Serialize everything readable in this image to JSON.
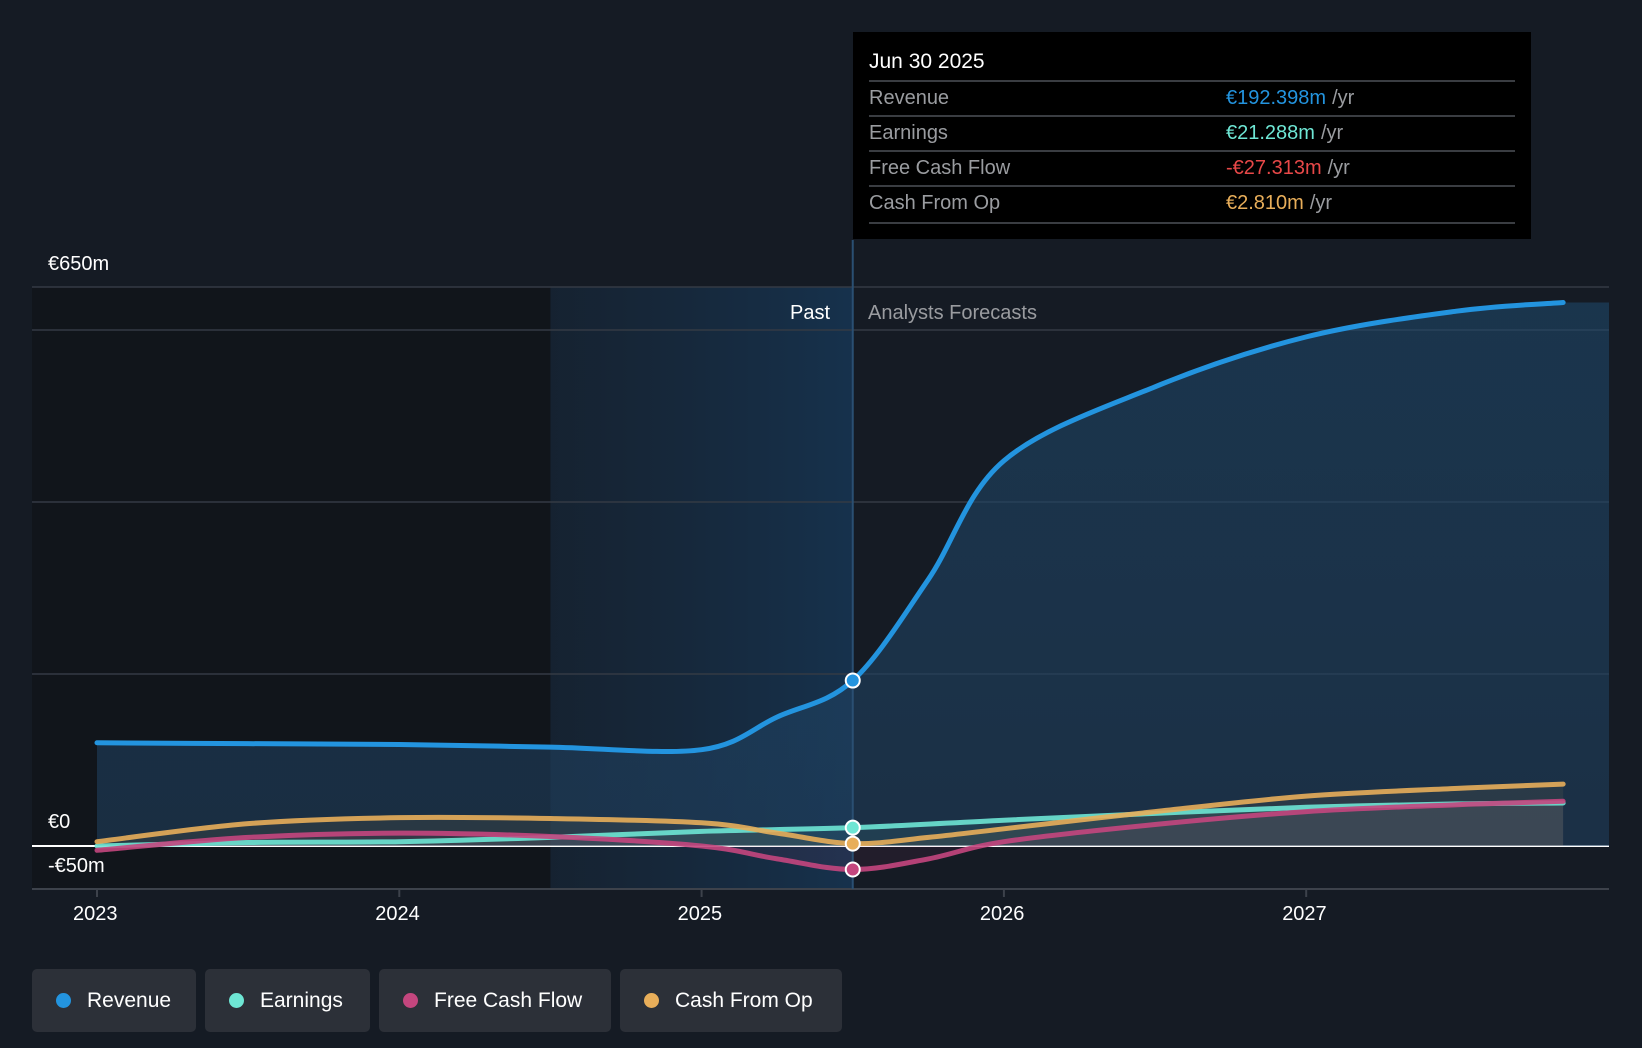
{
  "chart_data": {
    "type": "line",
    "title": "",
    "xlabel": "",
    "ylabel": "",
    "xlim": [
      2022.88,
      2027.85
    ],
    "ylim": [
      -50,
      650
    ],
    "y_tick_labels": [
      "€650m",
      "€0",
      "-€50m"
    ],
    "x_tick_labels": [
      "2023",
      "2024",
      "2025",
      "2026",
      "2027"
    ],
    "x_ticks": [
      2023,
      2024,
      2025,
      2026,
      2027
    ],
    "grid_values": [
      0,
      200,
      400,
      600,
      650
    ],
    "past_label": "Past",
    "forecast_label": "Analysts Forecasts",
    "divider_x": 2025.5,
    "highlight_start": 2024.5,
    "series": [
      {
        "name": "Revenue",
        "color": "#2394df",
        "x": [
          2023,
          2023.5,
          2024,
          2024.5,
          2025,
          2025.25,
          2025.5,
          2025.75,
          2026,
          2026.5,
          2027,
          2027.5,
          2027.85
        ],
        "values": [
          120,
          119,
          118,
          115,
          112,
          150,
          192.4,
          310,
          448,
          534,
          592,
          622,
          632
        ]
      },
      {
        "name": "Earnings",
        "color": "#6ee6d4",
        "x": [
          2023,
          2023.5,
          2024,
          2024.5,
          2025,
          2025.5,
          2026,
          2026.5,
          2027,
          2027.5,
          2027.85
        ],
        "values": [
          0,
          4,
          5,
          10,
          17,
          21.3,
          30,
          38,
          45,
          49,
          50
        ]
      },
      {
        "name": "Free Cash Flow",
        "color": "#c4467e",
        "x": [
          2023,
          2023.5,
          2024,
          2024.5,
          2025,
          2025.25,
          2025.5,
          2025.75,
          2026,
          2026.5,
          2027,
          2027.5,
          2027.85
        ],
        "values": [
          -5,
          10,
          15,
          11,
          0,
          -15,
          -27.3,
          -15,
          5,
          25,
          40,
          48,
          52
        ]
      },
      {
        "name": "Cash From Op",
        "color": "#e8ae5a",
        "x": [
          2023,
          2023.5,
          2024,
          2024.5,
          2025,
          2025.25,
          2025.5,
          2025.75,
          2026,
          2026.5,
          2027,
          2027.5,
          2027.85
        ],
        "values": [
          5,
          26,
          33,
          32,
          27,
          15,
          2.8,
          10,
          20,
          40,
          58,
          67,
          72
        ]
      }
    ]
  },
  "tooltip": {
    "date": "Jun 30 2025",
    "rows": [
      {
        "label": "Revenue",
        "value": "€192.398m",
        "unit": "/yr",
        "color": "#2394df"
      },
      {
        "label": "Earnings",
        "value": "€21.288m",
        "unit": "/yr",
        "color": "#6ee6d4"
      },
      {
        "label": "Free Cash Flow",
        "value": "-€27.313m",
        "unit": "/yr",
        "color": "#e84848"
      },
      {
        "label": "Cash From Op",
        "value": "€2.810m",
        "unit": "/yr",
        "color": "#e8ae5a"
      }
    ]
  },
  "legend": [
    {
      "label": "Revenue",
      "color": "#2394df"
    },
    {
      "label": "Earnings",
      "color": "#6ee6d4"
    },
    {
      "label": "Free Cash Flow",
      "color": "#c4467e"
    },
    {
      "label": "Cash From Op",
      "color": "#e8ae5a"
    }
  ]
}
